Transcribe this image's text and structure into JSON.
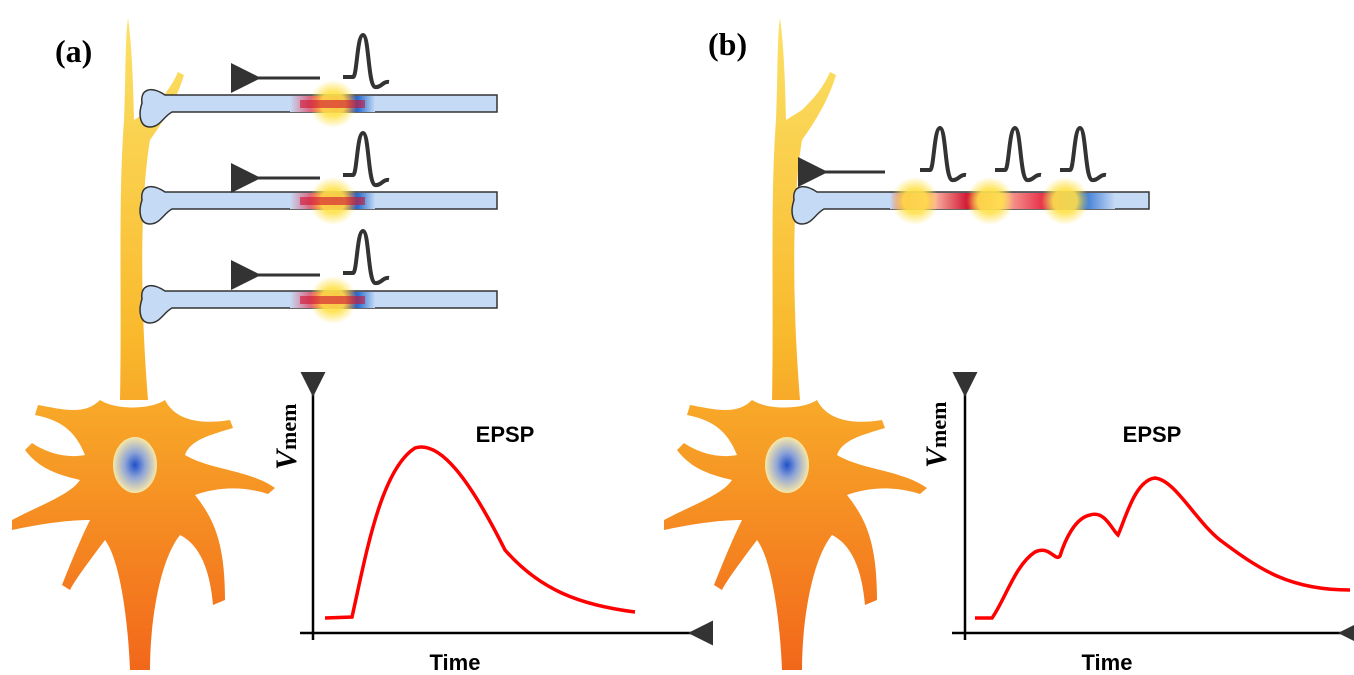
{
  "panels": [
    {
      "label": "(a)",
      "plot": {
        "title": "EPSP",
        "y_label": {
          "main": "V",
          "sub": "mem"
        },
        "x_label": "Time"
      }
    },
    {
      "label": "(b)",
      "plot": {
        "title": "EPSP",
        "y_label": {
          "main": "V",
          "sub": "mem"
        },
        "x_label": "Time"
      }
    }
  ]
}
